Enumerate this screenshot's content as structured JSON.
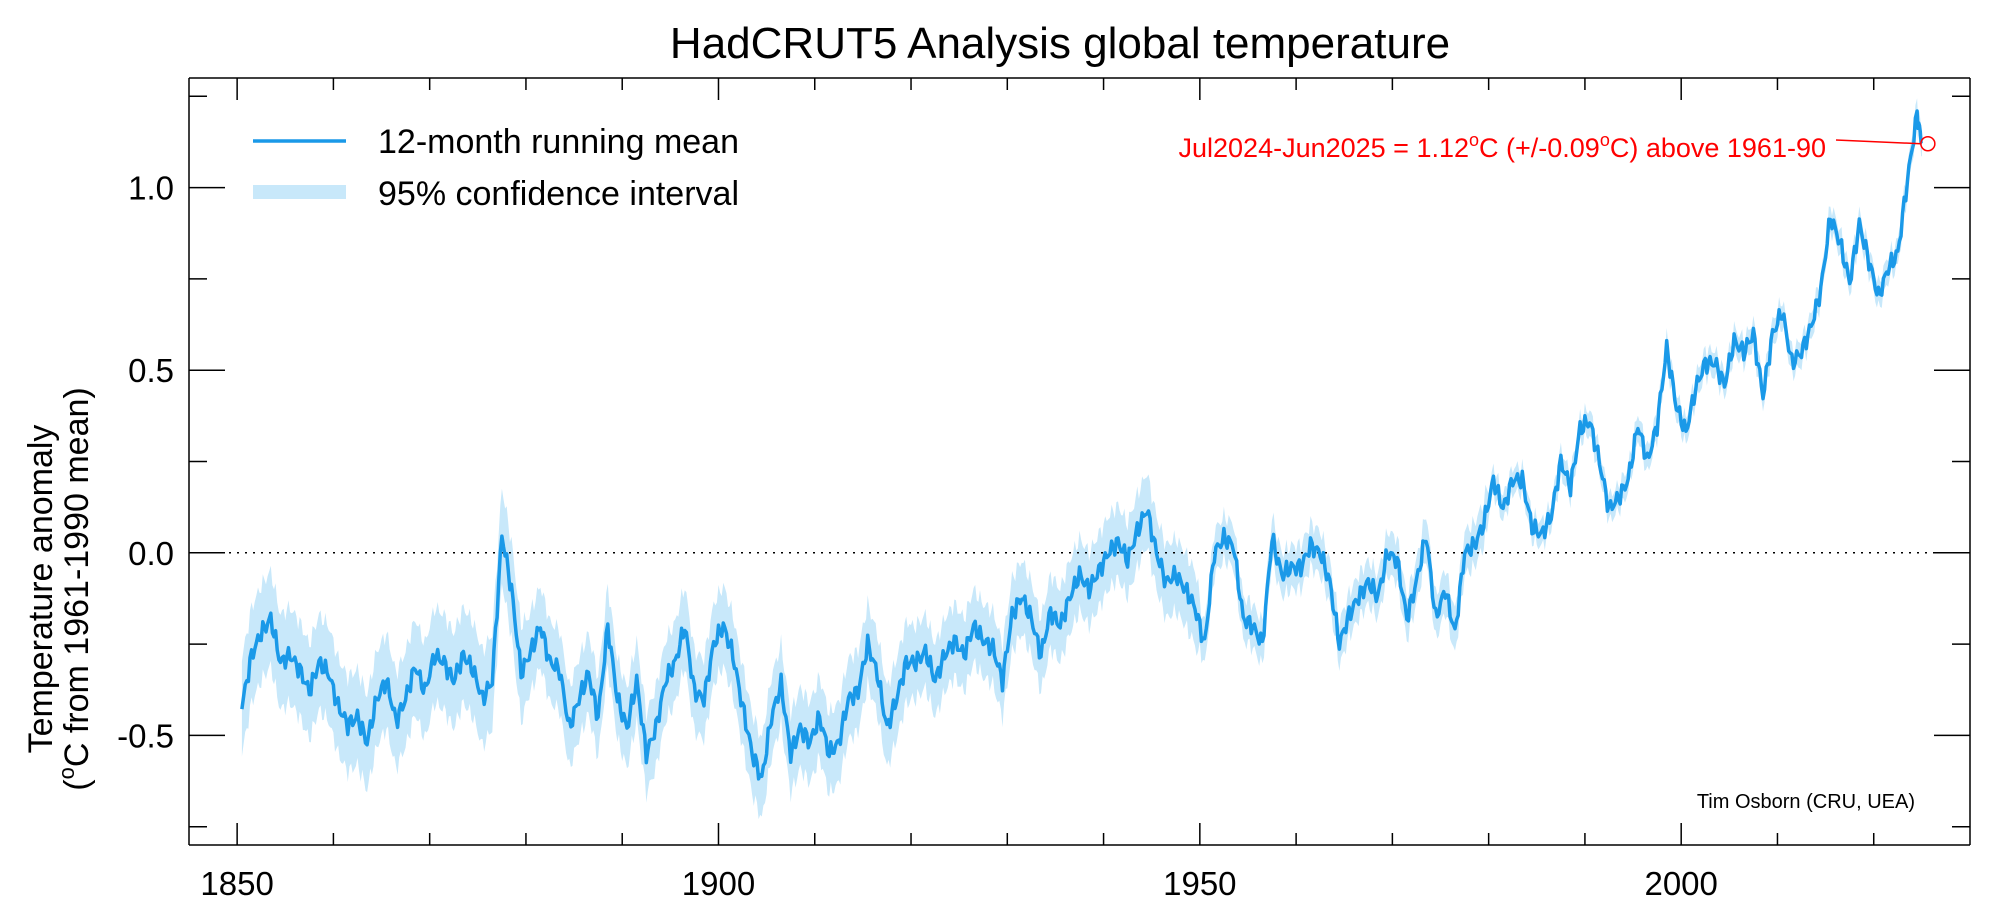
{
  "chart_data": {
    "type": "line",
    "title": "HadCRUT5 Analysis global temperature",
    "ylabel_line1": "Temperature anomaly",
    "ylabel_line2_prefix": "(",
    "ylabel_line2_sup": "o",
    "ylabel_line2_suffix": "C from 1961-1990 mean)",
    "xlim": [
      1845,
      2030
    ],
    "ylim": [
      -0.8,
      1.3
    ],
    "x_ticks": [
      1850,
      1900,
      1950,
      2000
    ],
    "x_minor_ticks": [
      1860,
      1870,
      1880,
      1890,
      1910,
      1920,
      1930,
      1940,
      1960,
      1970,
      1980,
      1990,
      2010,
      2020
    ],
    "y_ticks": [
      -0.5,
      0.0,
      0.5,
      1.0
    ],
    "y_tick_labels": [
      "-0.5",
      "0.0",
      "0.5",
      "1.0"
    ],
    "y_minor_ticks": [
      -0.75,
      -0.25,
      0.25,
      0.75,
      1.25
    ],
    "zero_line": "dotted",
    "legend_position": "top-left",
    "legend": [
      {
        "label": "12-month running mean",
        "style": "line",
        "color": "#1a99e8"
      },
      {
        "label": "95% confidence interval",
        "style": "band",
        "color": "#c8e8fa"
      }
    ],
    "series": [
      {
        "name": "12-month running mean",
        "color": "#1a99e8",
        "x": [
          1850.5,
          1851.5,
          1852.5,
          1853.5,
          1854.5,
          1855.5,
          1856.5,
          1857.5,
          1858.5,
          1859.5,
          1860.5,
          1861.5,
          1862.5,
          1863.5,
          1864.5,
          1865.5,
          1866.5,
          1867.5,
          1868.5,
          1869.5,
          1870.5,
          1871.5,
          1872.5,
          1873.5,
          1874.5,
          1875.5,
          1876.5,
          1877.5,
          1878.5,
          1879.5,
          1880.5,
          1881.5,
          1882.5,
          1883.5,
          1884.5,
          1885.5,
          1886.5,
          1887.5,
          1888.5,
          1889.5,
          1890.5,
          1891.5,
          1892.5,
          1893.5,
          1894.5,
          1895.5,
          1896.5,
          1897.5,
          1898.5,
          1899.5,
          1900.5,
          1901.5,
          1902.5,
          1903.5,
          1904.5,
          1905.5,
          1906.5,
          1907.5,
          1908.5,
          1909.5,
          1910.5,
          1911.5,
          1912.5,
          1913.5,
          1914.5,
          1915.5,
          1916.5,
          1917.5,
          1918.5,
          1919.5,
          1920.5,
          1921.5,
          1922.5,
          1923.5,
          1924.5,
          1925.5,
          1926.5,
          1927.5,
          1928.5,
          1929.5,
          1930.5,
          1931.5,
          1932.5,
          1933.5,
          1934.5,
          1935.5,
          1936.5,
          1937.5,
          1938.5,
          1939.5,
          1940.5,
          1941.5,
          1942.5,
          1943.5,
          1944.5,
          1945.5,
          1946.5,
          1947.5,
          1948.5,
          1949.5,
          1950.5,
          1951.5,
          1952.5,
          1953.5,
          1954.5,
          1955.5,
          1956.5,
          1957.5,
          1958.5,
          1959.5,
          1960.5,
          1961.5,
          1962.5,
          1963.5,
          1964.5,
          1965.5,
          1966.5,
          1967.5,
          1968.5,
          1969.5,
          1970.5,
          1971.5,
          1972.5,
          1973.5,
          1974.5,
          1975.5,
          1976.5,
          1977.5,
          1978.5,
          1979.5,
          1980.5,
          1981.5,
          1982.5,
          1983.5,
          1984.5,
          1985.5,
          1986.5,
          1987.5,
          1988.5,
          1989.5,
          1990.5,
          1991.5,
          1992.5,
          1993.5,
          1994.5,
          1995.5,
          1996.5,
          1997.5,
          1998.5,
          1999.5,
          2000.5,
          2001.5,
          2002.5,
          2003.5,
          2004.5,
          2005.5,
          2006.5,
          2007.5,
          2008.5,
          2009.5,
          2010.5,
          2011.5,
          2012.5,
          2013.5,
          2014.5,
          2015.5,
          2016.5,
          2017.5,
          2018.5,
          2019.5,
          2020.5,
          2021.5,
          2022.5,
          2023.5,
          2024.5,
          2025.0
        ],
        "y": [
          -0.42,
          -0.28,
          -0.22,
          -0.18,
          -0.3,
          -0.28,
          -0.32,
          -0.38,
          -0.3,
          -0.33,
          -0.42,
          -0.47,
          -0.45,
          -0.52,
          -0.4,
          -0.35,
          -0.46,
          -0.4,
          -0.31,
          -0.38,
          -0.28,
          -0.3,
          -0.35,
          -0.28,
          -0.32,
          -0.4,
          -0.35,
          0.05,
          -0.1,
          -0.33,
          -0.27,
          -0.2,
          -0.3,
          -0.32,
          -0.48,
          -0.4,
          -0.33,
          -0.45,
          -0.2,
          -0.4,
          -0.48,
          -0.35,
          -0.55,
          -0.48,
          -0.35,
          -0.3,
          -0.2,
          -0.38,
          -0.4,
          -0.25,
          -0.2,
          -0.28,
          -0.42,
          -0.55,
          -0.62,
          -0.45,
          -0.36,
          -0.55,
          -0.48,
          -0.52,
          -0.45,
          -0.55,
          -0.52,
          -0.4,
          -0.38,
          -0.25,
          -0.33,
          -0.48,
          -0.4,
          -0.3,
          -0.3,
          -0.27,
          -0.35,
          -0.28,
          -0.24,
          -0.28,
          -0.2,
          -0.24,
          -0.26,
          -0.35,
          -0.17,
          -0.12,
          -0.18,
          -0.28,
          -0.16,
          -0.2,
          -0.12,
          -0.06,
          -0.1,
          -0.05,
          0.0,
          0.03,
          -0.02,
          0.06,
          0.12,
          0.0,
          -0.08,
          -0.06,
          -0.1,
          -0.15,
          -0.25,
          0.0,
          0.04,
          0.02,
          -0.18,
          -0.2,
          -0.25,
          0.04,
          -0.06,
          -0.04,
          -0.04,
          0.02,
          0.0,
          -0.08,
          -0.25,
          -0.17,
          -0.12,
          -0.08,
          -0.12,
          0.0,
          -0.02,
          -0.18,
          -0.08,
          0.05,
          -0.18,
          -0.1,
          -0.22,
          0.0,
          0.02,
          0.08,
          0.2,
          0.12,
          0.2,
          0.2,
          0.07,
          0.05,
          0.1,
          0.25,
          0.18,
          0.34,
          0.36,
          0.25,
          0.12,
          0.15,
          0.2,
          0.35,
          0.25,
          0.35,
          0.56,
          0.4,
          0.33,
          0.45,
          0.52,
          0.52,
          0.46,
          0.58,
          0.55,
          0.6,
          0.43,
          0.6,
          0.66,
          0.52,
          0.55,
          0.62,
          0.72,
          0.92,
          0.85,
          0.74,
          0.9,
          0.8,
          0.7,
          0.78,
          0.82,
          1.02,
          1.2,
          1.12
        ]
      }
    ],
    "annotation": {
      "x": 2025.0,
      "y": 1.12,
      "text_prefix": "Jul2024-Jun2025 = 1.12",
      "text_sup1": "o",
      "text_mid": "C (+/-0.09",
      "text_sup2": "o",
      "text_suffix": "C) above 1961-90",
      "color": "#ff0000"
    },
    "credit": "Tim Osborn (CRU, UEA)"
  }
}
